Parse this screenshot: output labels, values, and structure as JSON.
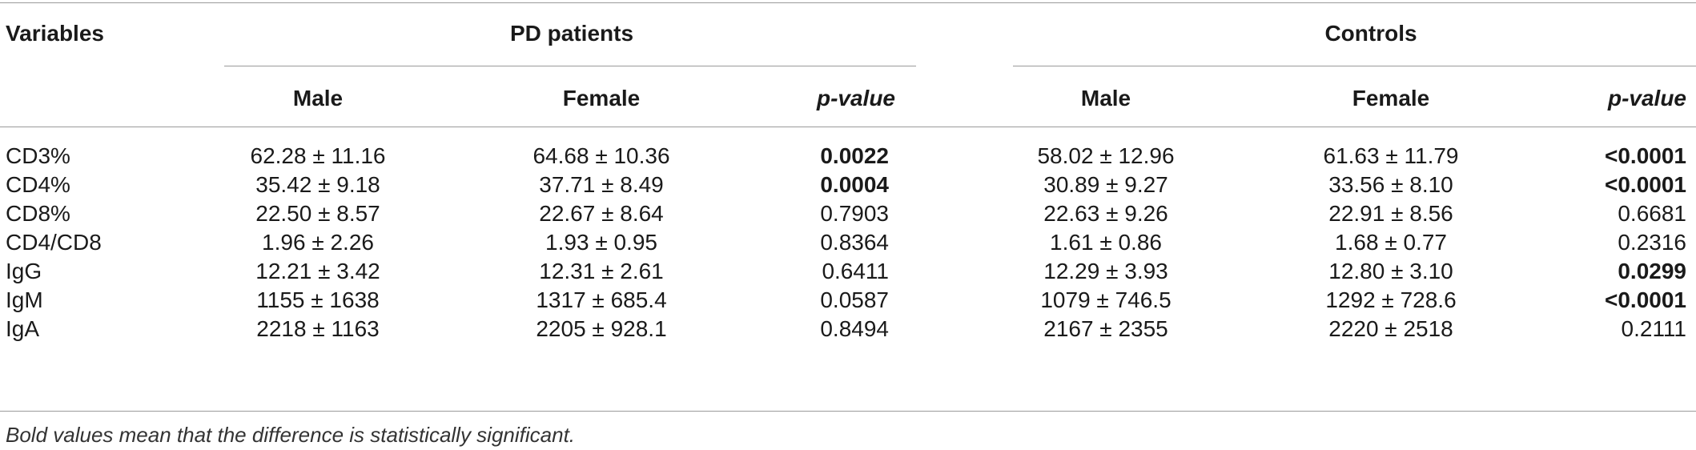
{
  "table": {
    "header": {
      "variables": "Variables",
      "groups": [
        "PD patients",
        "Controls"
      ],
      "subcolumns": [
        "Male",
        "Female",
        "p-value"
      ]
    },
    "rows": [
      {
        "variable": "CD3%",
        "pd_male": "62.28 ± 11.16",
        "pd_female": "64.68 ± 10.36",
        "pd_p": "0.0022",
        "pd_p_bold": true,
        "ctl_male": "58.02 ± 12.96",
        "ctl_female": "61.63 ± 11.79",
        "ctl_p": "<0.0001",
        "ctl_p_bold": true
      },
      {
        "variable": "CD4%",
        "pd_male": "35.42 ± 9.18",
        "pd_female": "37.71 ± 8.49",
        "pd_p": "0.0004",
        "pd_p_bold": true,
        "ctl_male": "30.89 ± 9.27",
        "ctl_female": "33.56 ± 8.10",
        "ctl_p": "<0.0001",
        "ctl_p_bold": true
      },
      {
        "variable": "CD8%",
        "pd_male": "22.50 ± 8.57",
        "pd_female": "22.67 ± 8.64",
        "pd_p": "0.7903",
        "pd_p_bold": false,
        "ctl_male": "22.63 ± 9.26",
        "ctl_female": "22.91 ± 8.56",
        "ctl_p": "0.6681",
        "ctl_p_bold": false
      },
      {
        "variable": "CD4/CD8",
        "pd_male": "1.96 ± 2.26",
        "pd_female": "1.93 ± 0.95",
        "pd_p": "0.8364",
        "pd_p_bold": false,
        "ctl_male": "1.61 ± 0.86",
        "ctl_female": "1.68 ± 0.77",
        "ctl_p": "0.2316",
        "ctl_p_bold": false
      },
      {
        "variable": "IgG",
        "pd_male": "12.21 ± 3.42",
        "pd_female": "12.31 ± 2.61",
        "pd_p": "0.6411",
        "pd_p_bold": false,
        "ctl_male": "12.29 ± 3.93",
        "ctl_female": "12.80 ± 3.10",
        "ctl_p": "0.0299",
        "ctl_p_bold": true
      },
      {
        "variable": "IgM",
        "pd_male": "1155 ± 1638",
        "pd_female": "1317 ± 685.4",
        "pd_p": "0.0587",
        "pd_p_bold": false,
        "ctl_male": "1079 ± 746.5",
        "ctl_female": "1292 ± 728.6",
        "ctl_p": "<0.0001",
        "ctl_p_bold": true
      },
      {
        "variable": "IgA",
        "pd_male": "2218 ± 1163",
        "pd_female": "2205 ± 928.1",
        "pd_p": "0.8494",
        "pd_p_bold": false,
        "ctl_male": "2167 ± 2355",
        "ctl_female": "2220 ± 2518",
        "ctl_p": "0.2111",
        "ctl_p_bold": false
      }
    ],
    "footnote": "Bold values mean that the difference is statistically significant."
  }
}
